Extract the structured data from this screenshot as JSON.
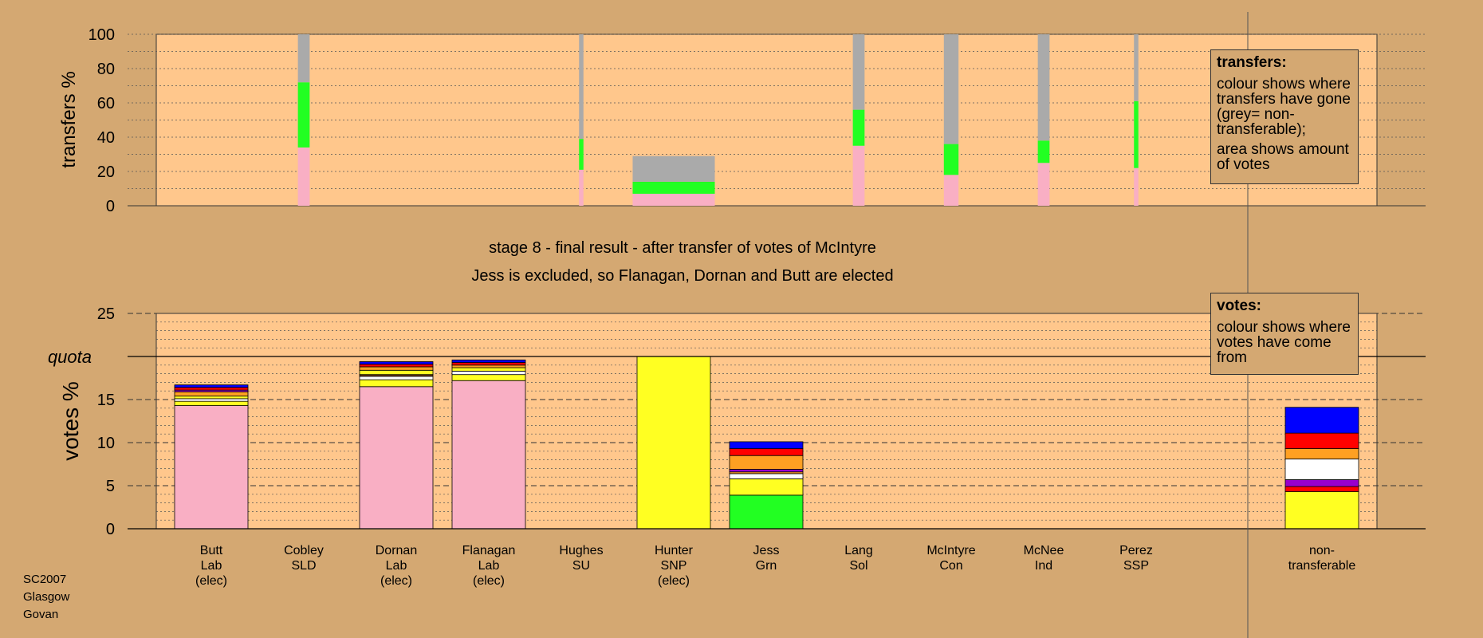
{
  "corner_label": [
    "SC2007",
    "Glasgow",
    "Govan"
  ],
  "stage_title": "stage 8 - final result - after transfer of votes of McIntyre",
  "stage_subtitle": "Jess is excluded, so Flanagan, Dornan and Butt are elected",
  "transfers_legend": {
    "title": "transfers:",
    "lines": [
      "colour shows where transfers have gone (grey= non-transferable);",
      "area shows amount of votes"
    ]
  },
  "votes_legend": {
    "title": "votes:",
    "lines": [
      "colour shows where votes have come from"
    ]
  },
  "colors": {
    "Lab": "#F9AFC4",
    "SNP": "#FFFF22",
    "Grn": "#22FF22",
    "Con": "#0000FF",
    "SLD": "#FFA022",
    "SSP": "#FF0000",
    "Sol": "#9900CC",
    "Ind": "#FFFFFF",
    "SU": "#6A3A15",
    "nontransferable": "#AAAAAA",
    "plot_bg": "#FFC78C",
    "page_bg": "#D4A872"
  },
  "chart_data": [
    {
      "type": "bar",
      "title": "",
      "ylabel": "transfers %",
      "ylim": [
        0,
        100
      ],
      "yticks": [
        0,
        20,
        40,
        60,
        80,
        100
      ],
      "note": "stacked transfer shares by recipient",
      "bars": [
        {
          "candidate": "Cobley",
          "width_frac": 0.16,
          "segments": [
            {
              "color": "Lab",
              "value": 34
            },
            {
              "color": "Grn",
              "value": 38
            },
            {
              "color": "nontransferable",
              "value": 28
            }
          ]
        },
        {
          "candidate": "Hughes",
          "width_frac": 0.06,
          "segments": [
            {
              "color": "Lab",
              "value": 21
            },
            {
              "color": "Grn",
              "value": 18
            },
            {
              "color": "nontransferable",
              "value": 61
            }
          ]
        },
        {
          "candidate": "Hunter",
          "width_frac": 1.12,
          "segments": [
            {
              "color": "Lab",
              "value": 7
            },
            {
              "color": "Grn",
              "value": 7
            },
            {
              "color": "nontransferable",
              "value": 15
            }
          ]
        },
        {
          "candidate": "Lang",
          "width_frac": 0.16,
          "segments": [
            {
              "color": "Lab",
              "value": 35
            },
            {
              "color": "Grn",
              "value": 21
            },
            {
              "color": "nontransferable",
              "value": 44
            }
          ]
        },
        {
          "candidate": "McIntyre",
          "width_frac": 0.2,
          "segments": [
            {
              "color": "Lab",
              "value": 18
            },
            {
              "color": "Grn",
              "value": 18
            },
            {
              "color": "nontransferable",
              "value": 64
            }
          ]
        },
        {
          "candidate": "McNee",
          "width_frac": 0.16,
          "segments": [
            {
              "color": "Lab",
              "value": 25
            },
            {
              "color": "Grn",
              "value": 13
            },
            {
              "color": "nontransferable",
              "value": 62
            }
          ]
        },
        {
          "candidate": "Perez",
          "width_frac": 0.06,
          "segments": [
            {
              "color": "Lab",
              "value": 22
            },
            {
              "color": "Grn",
              "value": 39
            },
            {
              "color": "nontransferable",
              "value": 39
            }
          ]
        }
      ]
    },
    {
      "type": "bar",
      "title": "",
      "ylabel": "votes %",
      "ylim": [
        0,
        25
      ],
      "yticks": [
        0,
        5,
        10,
        15,
        20,
        25
      ],
      "quota": 20,
      "quota_label": "quota",
      "categories": [
        {
          "lines": [
            "Butt",
            "Lab",
            "(elec)"
          ]
        },
        {
          "lines": [
            "Cobley",
            "SLD"
          ]
        },
        {
          "lines": [
            "Dornan",
            "Lab",
            "(elec)"
          ]
        },
        {
          "lines": [
            "Flanagan",
            "Lab",
            "(elec)"
          ]
        },
        {
          "lines": [
            "Hughes",
            "SU"
          ]
        },
        {
          "lines": [
            "Hunter",
            "SNP",
            "(elec)"
          ]
        },
        {
          "lines": [
            "Jess",
            "Grn"
          ]
        },
        {
          "lines": [
            "Lang",
            "Sol"
          ]
        },
        {
          "lines": [
            "McIntyre",
            "Con"
          ]
        },
        {
          "lines": [
            "McNee",
            "Ind"
          ]
        },
        {
          "lines": [
            "Perez",
            "SSP"
          ]
        },
        {
          "lines": [
            "non-",
            "transferable"
          ]
        }
      ],
      "series": [
        {
          "category": 0,
          "segments": [
            {
              "color": "Lab",
              "value": 14.3
            },
            {
              "color": "SNP",
              "value": 0.5
            },
            {
              "color": "Ind",
              "value": 0.3
            },
            {
              "color": "SNP",
              "value": 0.3
            },
            {
              "color": "SLD",
              "value": 0.5
            },
            {
              "color": "Sol",
              "value": 0.2
            },
            {
              "color": "SSP",
              "value": 0.3
            },
            {
              "color": "Con",
              "value": 0.3
            }
          ]
        },
        {
          "category": 1,
          "segments": []
        },
        {
          "category": 2,
          "segments": [
            {
              "color": "Lab",
              "value": 16.5
            },
            {
              "color": "SNP",
              "value": 0.8
            },
            {
              "color": "Ind",
              "value": 0.4
            },
            {
              "color": "SU",
              "value": 0.2
            },
            {
              "color": "SNP",
              "value": 0.5
            },
            {
              "color": "SLD",
              "value": 0.4
            },
            {
              "color": "SSP",
              "value": 0.3
            },
            {
              "color": "Con",
              "value": 0.3
            }
          ]
        },
        {
          "category": 3,
          "segments": [
            {
              "color": "Lab",
              "value": 17.2
            },
            {
              "color": "SNP",
              "value": 0.7
            },
            {
              "color": "Ind",
              "value": 0.4
            },
            {
              "color": "SNP",
              "value": 0.4
            },
            {
              "color": "SLD",
              "value": 0.3
            },
            {
              "color": "SSP",
              "value": 0.3
            },
            {
              "color": "Con",
              "value": 0.3
            }
          ]
        },
        {
          "category": 4,
          "segments": []
        },
        {
          "category": 5,
          "segments": [
            {
              "color": "SNP",
              "value": 20.0
            }
          ]
        },
        {
          "category": 6,
          "segments": [
            {
              "color": "Grn",
              "value": 3.9
            },
            {
              "color": "SNP",
              "value": 1.9
            },
            {
              "color": "Ind",
              "value": 0.6
            },
            {
              "color": "SLD",
              "value": 0.2
            },
            {
              "color": "Sol",
              "value": 0.3
            },
            {
              "color": "SLD",
              "value": 1.6
            },
            {
              "color": "SSP",
              "value": 0.8
            },
            {
              "color": "Con",
              "value": 0.8
            }
          ]
        },
        {
          "category": 7,
          "segments": []
        },
        {
          "category": 8,
          "segments": []
        },
        {
          "category": 9,
          "segments": []
        },
        {
          "category": 10,
          "segments": []
        },
        {
          "category": 11,
          "segments": [
            {
              "color": "SNP",
              "value": 4.3
            },
            {
              "color": "SSP",
              "value": 0.6
            },
            {
              "color": "Sol",
              "value": 0.8
            },
            {
              "color": "Ind",
              "value": 2.4
            },
            {
              "color": "SLD",
              "value": 1.2
            },
            {
              "color": "SSP",
              "value": 1.8
            },
            {
              "color": "Con",
              "value": 3.0
            }
          ]
        }
      ]
    }
  ]
}
